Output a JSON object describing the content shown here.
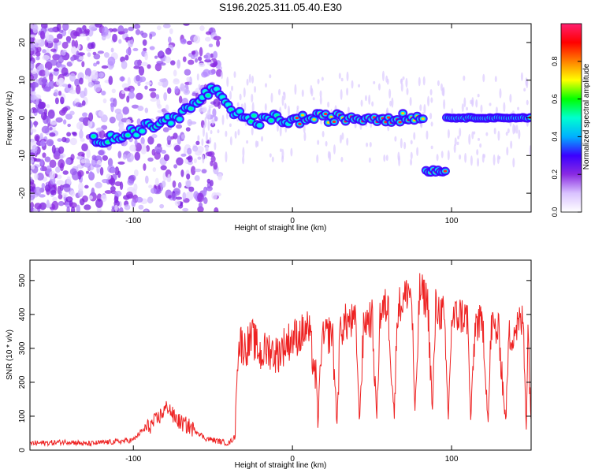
{
  "title": "S196.2025.311.05.40.E30",
  "chart_data": [
    {
      "type": "heatmap",
      "name": "spectrogram",
      "xlabel": "Height of straight line (km)",
      "ylabel": "Frequency (Hz)",
      "xlim": [
        -165,
        150
      ],
      "ylim": [
        -25,
        25
      ],
      "xticks": [
        -100,
        0,
        100
      ],
      "yticks": [
        -20,
        -10,
        0,
        10,
        20
      ],
      "colorbar": {
        "label": "Normalized spectral amplitude",
        "range": [
          0,
          1
        ],
        "ticks": [
          "0.0",
          "0.2",
          "0.4",
          "0.6",
          "0.8"
        ],
        "tick_values": [
          0,
          0.2,
          0.4,
          0.6,
          0.8
        ],
        "colors": [
          "#ffffff",
          "#d9c2ff",
          "#8a2be2",
          "#3b00ff",
          "#00b0ff",
          "#00ffd0",
          "#00ff00",
          "#ffff00",
          "#ff8000",
          "#ff0000",
          "#ff2070"
        ]
      },
      "main_signal_ridge": [
        {
          "x": -125,
          "f": -6
        },
        {
          "x": -110,
          "f": -5
        },
        {
          "x": -95,
          "f": -3
        },
        {
          "x": -80,
          "f": -1
        },
        {
          "x": -70,
          "f": 1
        },
        {
          "x": -60,
          "f": 4
        },
        {
          "x": -50,
          "f": 8
        },
        {
          "x": -45,
          "f": 5
        },
        {
          "x": -40,
          "f": 2
        },
        {
          "x": -30,
          "f": 0
        },
        {
          "x": -20,
          "f": -1
        },
        {
          "x": -10,
          "f": 0
        },
        {
          "x": 0,
          "f": -1
        },
        {
          "x": 10,
          "f": 0
        },
        {
          "x": 20,
          "f": 0
        },
        {
          "x": 40,
          "f": 0
        },
        {
          "x": 60,
          "f": 0
        },
        {
          "x": 83,
          "f": 0
        }
      ],
      "shifted_segment": {
        "x_start": 84,
        "x_end": 96,
        "f": -14
      },
      "resumed_segment": {
        "x_start": 97,
        "x_end": 150,
        "f": 0
      }
    },
    {
      "type": "line",
      "name": "snr",
      "xlabel": "Height of straight line (km)",
      "ylabel": "SNR (10 * v/v)",
      "color": "#ee2222",
      "xlim": [
        -165,
        150
      ],
      "ylim": [
        0,
        560
      ],
      "xticks": [
        -100,
        0,
        100
      ],
      "yticks": [
        0,
        100,
        200,
        300,
        400,
        500
      ],
      "x": [
        -165,
        -150,
        -140,
        -130,
        -120,
        -110,
        -100,
        -95,
        -90,
        -85,
        -80,
        -78,
        -75,
        -70,
        -65,
        -60,
        -55,
        -50,
        -45,
        -40,
        -36,
        -35,
        -33,
        -30,
        -25,
        -20,
        -15,
        -10,
        -5,
        0,
        5,
        10,
        15,
        16,
        18,
        20,
        25,
        28,
        30,
        35,
        40,
        42,
        45,
        50,
        53,
        55,
        60,
        64,
        66,
        70,
        73,
        75,
        77,
        80,
        85,
        88,
        90,
        95,
        98,
        100,
        105,
        110,
        112,
        115,
        120,
        123,
        125,
        130,
        134,
        136,
        140,
        145,
        147,
        148,
        150
      ],
      "y": [
        20,
        22,
        25,
        18,
        22,
        25,
        30,
        55,
        70,
        90,
        120,
        130,
        100,
        80,
        70,
        55,
        35,
        30,
        25,
        20,
        40,
        250,
        320,
        300,
        330,
        280,
        300,
        280,
        310,
        330,
        340,
        360,
        200,
        80,
        300,
        330,
        350,
        80,
        360,
        380,
        370,
        90,
        380,
        390,
        100,
        400,
        430,
        100,
        420,
        440,
        480,
        440,
        100,
        470,
        440,
        110,
        420,
        400,
        100,
        380,
        400,
        390,
        90,
        380,
        360,
        80,
        370,
        340,
        80,
        330,
        360,
        380,
        70,
        360,
        90
      ]
    }
  ]
}
